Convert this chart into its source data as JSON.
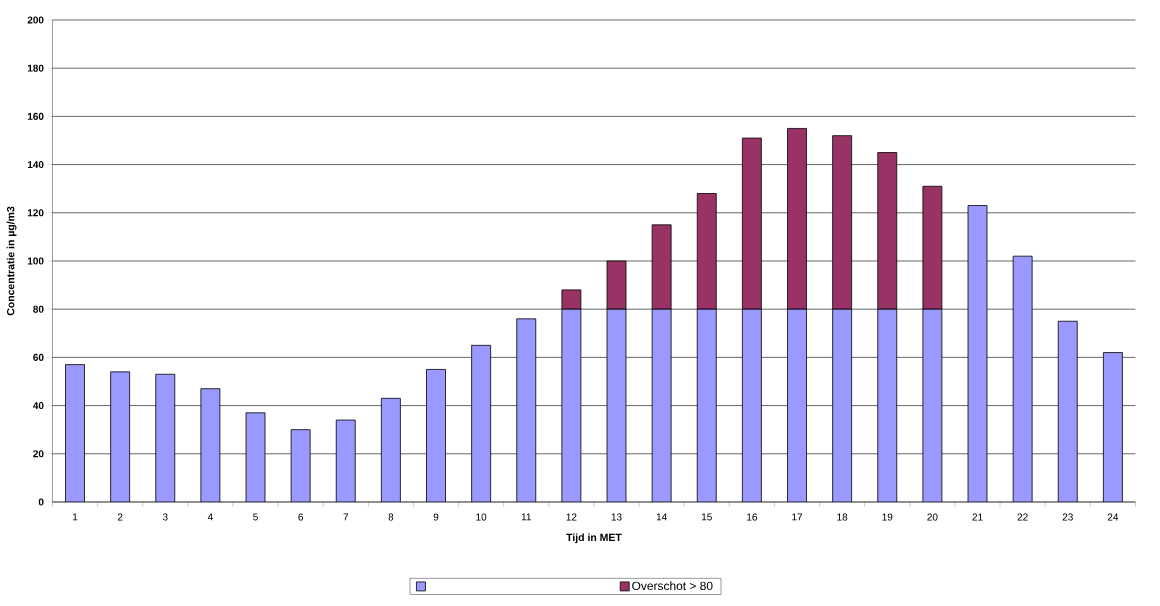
{
  "chart_data": {
    "type": "bar",
    "stacked": true,
    "xlabel": "Tijd in MET",
    "ylabel": "Concentratie in µg/m3",
    "categories": [
      "1",
      "2",
      "3",
      "4",
      "5",
      "6",
      "7",
      "8",
      "9",
      "10",
      "11",
      "12",
      "13",
      "14",
      "15",
      "16",
      "17",
      "18",
      "19",
      "20",
      "21",
      "22",
      "23",
      "24"
    ],
    "series": [
      {
        "color": "#9999ff",
        "values": [
          57,
          54,
          53,
          47,
          37,
          30,
          34,
          43,
          55,
          65,
          76,
          80,
          80,
          80,
          80,
          80,
          80,
          80,
          80,
          80,
          123,
          102,
          75,
          62
        ]
      },
      {
        "name": "Overschot > 80",
        "color": "#993366",
        "values": [
          null,
          null,
          null,
          null,
          null,
          null,
          null,
          null,
          null,
          null,
          null,
          8,
          20,
          35,
          48,
          71,
          75,
          72,
          65,
          51,
          null,
          null,
          null,
          null
        ]
      }
    ],
    "ylim": [
      0,
      200
    ],
    "yticks": [
      0,
      20,
      40,
      60,
      80,
      100,
      120,
      140,
      160,
      180,
      200
    ],
    "grid": "y",
    "legend": "bottom"
  }
}
